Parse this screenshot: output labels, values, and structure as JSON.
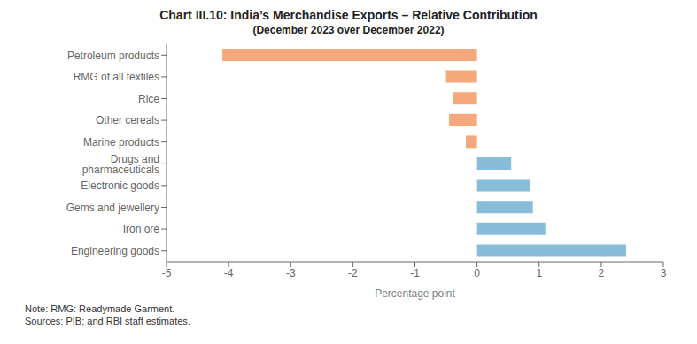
{
  "chart_data": {
    "type": "bar",
    "orientation": "horizontal",
    "title": "Chart III.10: India’s Merchandise Exports – Relative Contribution",
    "subtitle": "(December 2023 over December 2022)",
    "categories": [
      "Petroleum products",
      "RMG of all textiles",
      "Rice",
      "Other cereals",
      "Marine products",
      "Drugs and pharmaceuticals",
      "Electronic goods",
      "Gems and jewellery",
      "Iron ore",
      "Engineering goods"
    ],
    "values": [
      -4.1,
      -0.5,
      -0.38,
      -0.45,
      -0.18,
      0.55,
      0.85,
      0.9,
      1.1,
      2.4
    ],
    "colors": [
      "#f5a87c",
      "#f5a87c",
      "#f5a87c",
      "#f5a87c",
      "#f5a87c",
      "#87bdd8",
      "#87bdd8",
      "#87bdd8",
      "#87bdd8",
      "#87bdd8"
    ],
    "xlabel": "Percentage point",
    "xlim": [
      -5,
      3
    ],
    "xticks": [
      -5,
      -4,
      -3,
      -2,
      -1,
      0,
      1,
      2,
      3
    ],
    "grid": false,
    "annotations": [
      "Note: RMG: Readymade Garment.",
      "Sources: PIB; and RBI staff estimates."
    ]
  }
}
